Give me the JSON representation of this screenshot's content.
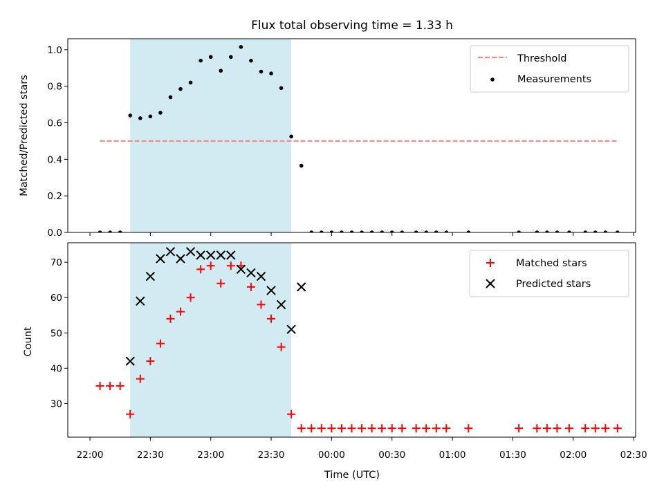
{
  "title": "Flux total observing time = 1.33 h",
  "xlabel": "Time (UTC)",
  "x_tick_labels": [
    "22:00",
    "22:30",
    "23:00",
    "23:30",
    "00:00",
    "00:30",
    "01:00",
    "01:30",
    "02:00",
    "02:30"
  ],
  "x_domain": [
    "21:49",
    "02:31"
  ],
  "observing_window": {
    "start": "22:20",
    "end": "23:40",
    "color": "#add8e6"
  },
  "colors": {
    "threshold": "#ff7f7f",
    "measurements": "#000000",
    "matched": "#ff0000",
    "predicted": "#000000"
  },
  "chart_data": [
    {
      "type": "scatter",
      "panel": "top",
      "ylabel": "Matched/Predicted stars",
      "ylim": [
        0,
        1.06
      ],
      "y_ticks": [
        "0.0",
        "0.2",
        "0.4",
        "0.6",
        "0.8",
        "1.0"
      ],
      "legend": [
        "Threshold",
        "Measurements"
      ],
      "legend_position": "top-right",
      "threshold": {
        "name": "Threshold",
        "value": 0.5,
        "x_start": "22:05",
        "x_end": "02:22"
      },
      "series": [
        {
          "name": "Measurements",
          "x": [
            "22:05",
            "22:10",
            "22:15",
            "22:20",
            "22:25",
            "22:30",
            "22:35",
            "22:40",
            "22:45",
            "22:50",
            "22:55",
            "23:00",
            "23:05",
            "23:10",
            "23:15",
            "23:20",
            "23:25",
            "23:30",
            "23:35",
            "23:40",
            "23:45",
            "23:50",
            "23:55",
            "00:00",
            "00:05",
            "00:10",
            "00:15",
            "00:20",
            "00:25",
            "00:30",
            "00:35",
            "00:42",
            "00:47",
            "00:52",
            "00:57",
            "01:08",
            "01:33",
            "01:42",
            "01:47",
            "01:52",
            "01:58",
            "02:06",
            "02:11",
            "02:16",
            "02:22"
          ],
          "y": [
            0,
            0,
            0,
            0.64,
            0.625,
            0.635,
            0.655,
            0.74,
            0.785,
            0.82,
            0.94,
            0.96,
            0.885,
            0.96,
            1.015,
            0.94,
            0.88,
            0.87,
            0.79,
            0.525,
            0.365,
            0,
            0,
            0,
            0,
            0,
            0,
            0,
            0,
            0,
            0,
            0,
            0,
            0,
            0,
            0,
            0,
            0,
            0,
            0,
            0,
            0,
            0,
            0,
            0
          ]
        }
      ]
    },
    {
      "type": "scatter",
      "panel": "bottom",
      "ylabel": "Count",
      "ylim": [
        20.5,
        75.5
      ],
      "y_ticks": [
        "30",
        "40",
        "50",
        "60",
        "70"
      ],
      "legend": [
        "Matched stars",
        "Predicted stars"
      ],
      "legend_position": "top-right",
      "series": [
        {
          "name": "Matched stars",
          "x": [
            "22:05",
            "22:10",
            "22:15",
            "22:20",
            "22:25",
            "22:30",
            "22:35",
            "22:40",
            "22:45",
            "22:50",
            "22:55",
            "23:00",
            "23:05",
            "23:10",
            "23:15",
            "23:20",
            "23:25",
            "23:30",
            "23:35",
            "23:40",
            "23:45",
            "23:50",
            "23:55",
            "00:00",
            "00:05",
            "00:10",
            "00:15",
            "00:20",
            "00:25",
            "00:30",
            "00:35",
            "00:42",
            "00:47",
            "00:52",
            "00:57",
            "01:08",
            "01:33",
            "01:42",
            "01:47",
            "01:52",
            "01:58",
            "02:06",
            "02:11",
            "02:16",
            "02:22"
          ],
          "y": [
            35,
            35,
            35,
            27,
            37,
            42,
            47,
            54,
            56,
            60,
            68,
            69,
            64,
            69,
            69,
            63,
            58,
            54,
            46,
            27,
            23,
            23,
            23,
            23,
            23,
            23,
            23,
            23,
            23,
            23,
            23,
            23,
            23,
            23,
            23,
            23,
            23,
            23,
            23,
            23,
            23,
            23,
            23,
            23,
            23
          ]
        },
        {
          "name": "Predicted stars",
          "x": [
            "22:20",
            "22:25",
            "22:30",
            "22:35",
            "22:40",
            "22:45",
            "22:50",
            "22:55",
            "23:00",
            "23:05",
            "23:10",
            "23:15",
            "23:20",
            "23:25",
            "23:30",
            "23:35",
            "23:40",
            "23:45"
          ],
          "y": [
            42,
            59,
            66,
            71,
            73,
            71,
            73,
            72,
            72,
            72,
            72,
            68,
            67,
            66,
            62,
            58,
            51,
            63
          ]
        }
      ]
    }
  ]
}
